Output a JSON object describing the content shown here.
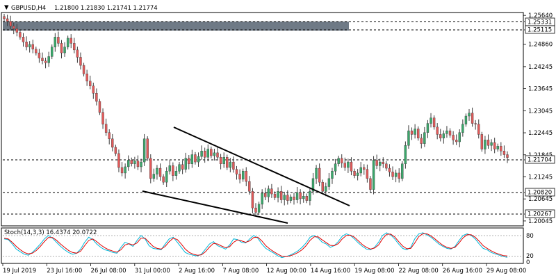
{
  "header": {
    "symbol": "GBPUSD,H4",
    "ohlc": "1.21800 1.21830 1.21741 1.21774"
  },
  "colors": {
    "bull": "#3aa86b",
    "bear": "#e35a5a",
    "wick": "#3a3a3a",
    "zone": "#6f7a86",
    "k_line": "#00b7d9",
    "d_line": "#e00000"
  },
  "chart_data": [
    {
      "type": "candlestick",
      "title": "GBPUSD,H4",
      "ylim": [
        1.1993,
        1.257
      ],
      "y_ticks": [
        "1.25640",
        "1.25331",
        "1.25115",
        "1.24860",
        "1.24245",
        "1.23645",
        "1.23045",
        "1.22445",
        "1.21845",
        "1.21704",
        "1.21245",
        "1.20820",
        "1.20645",
        "1.20267",
        "1.20045"
      ],
      "x_ticks": [
        "19 Jul 2019",
        "23 Jul 16:00",
        "26 Jul 08:00",
        "31 Jul 00:00",
        "2 Aug 16:00",
        "7 Aug 08:00",
        "12 Aug 00:00",
        "14 Aug 16:00",
        "19 Aug 08:00",
        "22 Aug 08:00",
        "26 Aug 16:00",
        "29 Aug 08:00"
      ],
      "closes": [
        1.2555,
        1.2548,
        1.2535,
        1.2528,
        1.2518,
        1.2505,
        1.2492,
        1.2478,
        1.2485,
        1.2472,
        1.2462,
        1.2448,
        1.244,
        1.2435,
        1.2452,
        1.2478,
        1.2505,
        1.2488,
        1.2462,
        1.2478,
        1.2502,
        1.2488,
        1.247,
        1.245,
        1.2428,
        1.2405,
        1.2385,
        1.2372,
        1.2352,
        1.233,
        1.23,
        1.2268,
        1.2245,
        1.2228,
        1.2205,
        1.2188,
        1.215,
        1.2135,
        1.2152,
        1.217,
        1.216,
        1.2168,
        1.2152,
        1.2165,
        1.2228,
        1.2175,
        1.212,
        1.2132,
        1.2148,
        1.2125,
        1.211,
        1.214,
        1.2155,
        1.2128,
        1.214,
        1.2158,
        1.2145,
        1.2175,
        1.216,
        1.2185,
        1.2165,
        1.218,
        1.2195,
        1.2178,
        1.22,
        1.2182,
        1.219,
        1.2178,
        1.216,
        1.2178,
        1.215,
        1.2165,
        1.2145,
        1.2132,
        1.2118,
        1.214,
        1.2112,
        1.2085,
        1.204,
        1.2028,
        1.205,
        1.208,
        1.207,
        1.2092,
        1.2078,
        1.2068,
        1.2085,
        1.2062,
        1.2075,
        1.206,
        1.207,
        1.2062,
        1.2082,
        1.2065,
        1.2072,
        1.206,
        1.2085,
        1.212,
        1.2148,
        1.211,
        1.2085,
        1.2098,
        1.212,
        1.214,
        1.216,
        1.2175,
        1.2162,
        1.215,
        1.2165,
        1.214,
        1.2128,
        1.2135,
        1.215,
        1.2145,
        1.212,
        1.209,
        1.217,
        1.2155,
        1.2165,
        1.216,
        1.2148,
        1.2138,
        1.2125,
        1.2135,
        1.212,
        1.216,
        1.221,
        1.225,
        1.224,
        1.2255,
        1.223,
        1.2215,
        1.2245,
        1.227,
        1.2285,
        1.226,
        1.224,
        1.223,
        1.2242,
        1.225,
        1.2238,
        1.2225,
        1.222,
        1.2245,
        1.2268,
        1.229,
        1.2298,
        1.227,
        1.2268,
        1.224,
        1.22,
        1.2225,
        1.221,
        1.2218,
        1.22,
        1.2208,
        1.2195,
        1.2185,
        1.2177
      ]
    },
    {
      "type": "line",
      "title": "Stoch(14,3,3) 16.4374 20.0722",
      "ylim": [
        0,
        100
      ],
      "y_ticks": [
        "80",
        "20",
        "0"
      ],
      "series": [
        {
          "name": "main",
          "values": [
            70,
            68,
            55,
            40,
            32,
            25,
            22,
            30,
            42,
            55,
            70,
            80,
            72,
            60,
            48,
            38,
            30,
            25,
            28,
            40,
            60,
            75,
            68,
            55,
            45,
            38,
            35,
            30,
            28,
            45,
            60,
            55,
            48,
            65,
            80,
            70,
            50,
            42,
            40,
            38,
            55,
            70,
            75,
            60,
            45,
            30,
            25,
            22,
            20,
            25,
            40,
            55,
            62,
            50,
            45,
            40,
            52,
            70,
            68,
            60,
            58,
            70,
            80,
            72,
            55,
            42,
            35,
            28,
            20,
            15,
            18,
            22,
            28,
            35,
            45,
            58,
            75,
            80,
            72,
            60,
            55,
            45,
            50,
            62,
            78,
            85,
            80,
            70,
            58,
            48,
            40,
            38,
            45,
            60,
            80,
            88,
            82,
            70,
            55,
            42,
            38,
            45,
            70,
            85,
            88,
            82,
            75,
            65,
            55,
            48,
            42,
            40,
            48,
            65,
            80,
            85,
            80,
            70,
            55,
            42,
            38,
            30,
            26,
            22,
            18,
            16
          ]
        },
        {
          "name": "signal",
          "values": [
            72,
            70,
            60,
            48,
            38,
            30,
            26,
            28,
            36,
            48,
            62,
            74,
            74,
            66,
            55,
            45,
            36,
            30,
            28,
            34,
            50,
            65,
            70,
            62,
            52,
            44,
            38,
            34,
            31,
            38,
            52,
            56,
            52,
            58,
            72,
            72,
            60,
            48,
            42,
            40,
            48,
            62,
            72,
            68,
            55,
            40,
            30,
            25,
            22,
            23,
            32,
            46,
            57,
            55,
            49,
            44,
            47,
            60,
            67,
            64,
            60,
            64,
            74,
            75,
            64,
            50,
            40,
            32,
            25,
            19,
            18,
            20,
            24,
            30,
            38,
            50,
            66,
            76,
            76,
            67,
            59,
            51,
            50,
            56,
            70,
            80,
            81,
            75,
            64,
            53,
            45,
            40,
            43,
            52,
            70,
            83,
            84,
            76,
            62,
            49,
            41,
            42,
            58,
            77,
            85,
            85,
            79,
            70,
            60,
            51,
            45,
            42,
            45,
            58,
            73,
            82,
            82,
            75,
            63,
            50,
            42,
            35,
            29,
            25,
            21,
            20
          ]
        }
      ]
    }
  ],
  "price_tags": {
    "t1": "1.25331",
    "t2": "1.25115",
    "t3": "1.21704",
    "t4": "1.20820",
    "t5": "1.20267"
  },
  "indicator_label": "Stoch(14,3,3) 16.4374 20.0722"
}
